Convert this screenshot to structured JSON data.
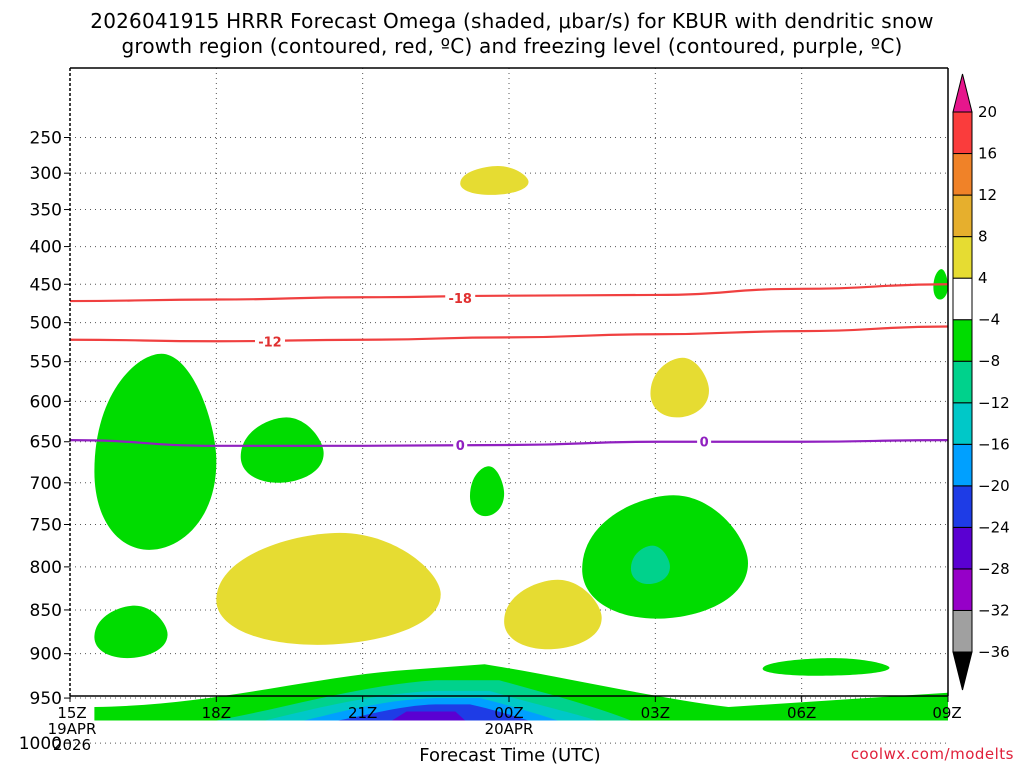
{
  "title_line1": "2026041915 HRRR Forecast Omega (shaded, μbar/s) for KBUR with dendritic snow",
  "title_line2": "growth region (contoured, red, ºC) and freezing level (contoured, purple, ºC)",
  "xlabel": "Forecast Time (UTC)",
  "credit": "coolwx.com/modelts",
  "chart_data": {
    "type": "heatmap",
    "title": "2026041915 HRRR Forecast Omega (shaded, μbar/s) for KBUR with dendritic snow growth region (contoured, red, ºC) and freezing level (contoured, purple, ºC)",
    "xlabel": "Forecast Time (UTC)",
    "ylabel": "",
    "x_range_hours": [
      0,
      18
    ],
    "x_ticks": [
      {
        "h": 0,
        "label": "15Z",
        "sub1": "19APR",
        "sub2": "2026"
      },
      {
        "h": 3,
        "label": "18Z"
      },
      {
        "h": 6,
        "label": "21Z"
      },
      {
        "h": 9,
        "label": "00Z",
        "sub1": "20APR"
      },
      {
        "h": 12,
        "label": "03Z"
      },
      {
        "h": 15,
        "label": "06Z"
      },
      {
        "h": 18,
        "label": "09Z"
      }
    ],
    "y_ticks": [
      250,
      300,
      350,
      400,
      450,
      500,
      550,
      600,
      650,
      700,
      750,
      800,
      850,
      900,
      950,
      1000
    ],
    "y_axis": "pressure (hPa), decreasing upward",
    "grid": true,
    "ground_level_hpa": 975,
    "colorbar": {
      "levels": [
        -36,
        -32,
        -28,
        -24,
        -20,
        -16,
        -12,
        -8,
        -4,
        4,
        8,
        12,
        16,
        20
      ],
      "colors": [
        "#000000",
        "#a0a0a0",
        "#9600c8",
        "#5a00d2",
        "#1e3ce6",
        "#00a0ff",
        "#00c8c8",
        "#00d28c",
        "#00dc00",
        "#ffffff",
        "#e6dc32",
        "#e6af2d",
        "#f08228",
        "#fa3c3c",
        "#e6168c"
      ]
    },
    "omega_regions": [
      {
        "value_class": "-8 to -4",
        "color": "#00dc00",
        "hours": [
          0.5,
          3.0
        ],
        "p_range": [
          540,
          780
        ]
      },
      {
        "value_class": "-8 to -4",
        "color": "#00dc00",
        "hours": [
          0.5,
          2.0
        ],
        "p_range": [
          845,
          905
        ]
      },
      {
        "value_class": "-8 to -4",
        "color": "#00dc00",
        "hours": [
          3.5,
          5.2
        ],
        "p_range": [
          620,
          700
        ]
      },
      {
        "value_class": "-8 to -4",
        "color": "#00dc00",
        "hours": [
          8.2,
          8.9
        ],
        "p_range": [
          680,
          740
        ]
      },
      {
        "value_class": "-8 to -4",
        "color": "#00dc00",
        "hours": [
          10.5,
          13.9
        ],
        "p_range": [
          715,
          860
        ]
      },
      {
        "value_class": "-12 to -8",
        "color": "#00d28c",
        "hours": [
          11.5,
          12.3
        ],
        "p_range": [
          775,
          820
        ]
      },
      {
        "value_class": "-8 to -4",
        "color": "#00dc00",
        "hours": [
          14.2,
          16.8
        ],
        "p_range": [
          905,
          925
        ]
      },
      {
        "value_class": "-8 to -4",
        "color": "#00dc00",
        "hours": [
          17.7,
          18.0
        ],
        "p_range": [
          430,
          470
        ]
      },
      {
        "value_class": "4 to 8",
        "color": "#e6dc32",
        "hours": [
          8.0,
          9.4
        ],
        "p_range": [
          290,
          330
        ]
      },
      {
        "value_class": "4 to 8",
        "color": "#e6dc32",
        "hours": [
          11.9,
          13.1
        ],
        "p_range": [
          545,
          620
        ]
      },
      {
        "value_class": "4 to 8",
        "color": "#e6dc32",
        "hours": [
          3.0,
          7.6
        ],
        "p_range": [
          760,
          890
        ]
      },
      {
        "value_class": "4 to 8",
        "color": "#e6dc32",
        "hours": [
          8.9,
          10.9
        ],
        "p_range": [
          815,
          895
        ]
      },
      {
        "value_class": "low-level negative omega",
        "hours": [
          0.5,
          18.0
        ],
        "p_range": [
          905,
          975
        ],
        "min_class": "-24 to -20",
        "min_hour": 7.5
      }
    ],
    "series": [
      {
        "name": "-18",
        "kind": "dendritic growth isotherm",
        "color": "#f04040",
        "x": [
          0,
          3,
          6,
          9,
          12,
          15,
          18
        ],
        "y": [
          472,
          470,
          467,
          465,
          464,
          456,
          450
        ]
      },
      {
        "name": "-12",
        "kind": "dendritic growth isotherm",
        "color": "#f04040",
        "x": [
          0,
          3,
          6,
          9,
          12,
          15,
          18
        ],
        "y": [
          522,
          524,
          522,
          519,
          515,
          511,
          505
        ]
      },
      {
        "name": "0",
        "kind": "freezing level",
        "color": "#9020c0",
        "x": [
          0,
          3,
          6,
          9,
          12,
          15,
          18
        ],
        "y": [
          648,
          655,
          655,
          654,
          650,
          650,
          648
        ]
      }
    ],
    "contour_labels": [
      {
        "text": "-18",
        "h": 8.0,
        "p": 468
      },
      {
        "text": "-12",
        "h": 4.1,
        "p": 524
      },
      {
        "text": "0",
        "h": 8.0,
        "p": 654
      },
      {
        "text": "0",
        "h": 13.0,
        "p": 650
      }
    ]
  }
}
